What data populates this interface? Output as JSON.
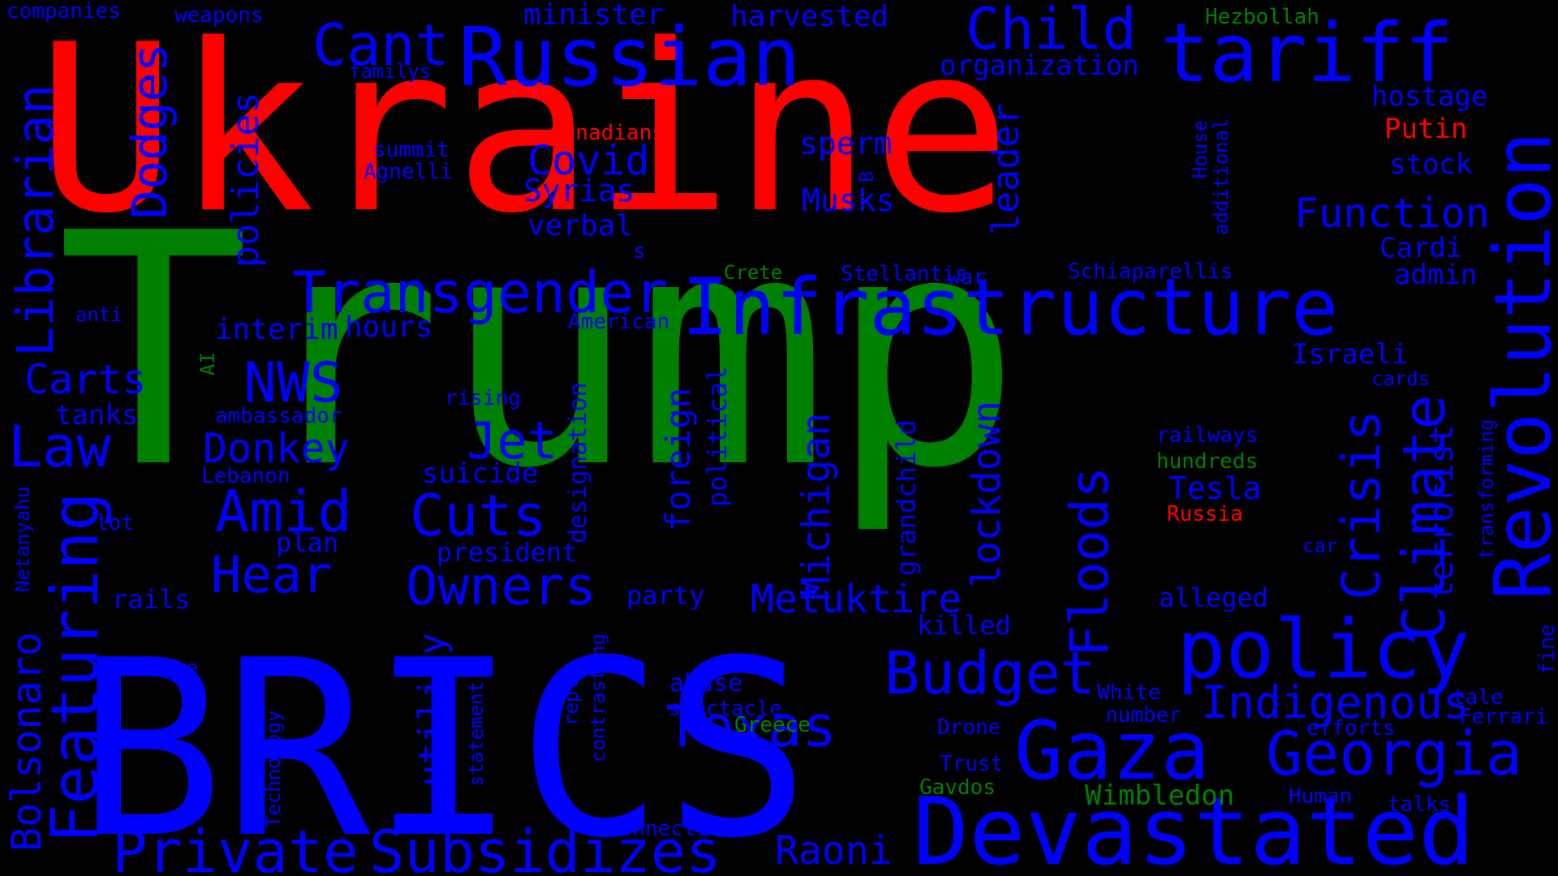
{
  "colors": {
    "background": "#000000",
    "red": "#ff0000",
    "green": "#008000",
    "blue": "#0000ff"
  },
  "words": [
    {
      "text": "Ukraine",
      "color": "red"
    },
    {
      "text": "Trump",
      "color": "green"
    },
    {
      "text": "BRICS",
      "color": "blue"
    },
    {
      "text": "Devastated",
      "color": "blue"
    },
    {
      "text": "Infrastructure",
      "color": "blue"
    },
    {
      "text": "Revolution",
      "color": "blue"
    },
    {
      "text": "Russian",
      "color": "blue"
    },
    {
      "text": "tariff",
      "color": "blue"
    },
    {
      "text": "policy",
      "color": "blue"
    },
    {
      "text": "Gaza",
      "color": "blue"
    },
    {
      "text": "Featuring",
      "color": "blue"
    },
    {
      "text": "Subsidizes",
      "color": "blue"
    },
    {
      "text": "Private",
      "color": "blue"
    },
    {
      "text": "Transgender",
      "color": "blue"
    },
    {
      "text": "Librarian",
      "color": "blue"
    },
    {
      "text": "Georgia",
      "color": "blue"
    },
    {
      "text": "Climate",
      "color": "blue"
    },
    {
      "text": "Crisis",
      "color": "blue"
    },
    {
      "text": "Floods",
      "color": "blue"
    },
    {
      "text": "Child",
      "color": "blue"
    },
    {
      "text": "Cant",
      "color": "blue"
    },
    {
      "text": "Dodges",
      "color": "blue"
    },
    {
      "text": "Law",
      "color": "blue"
    },
    {
      "text": "Amid",
      "color": "blue"
    },
    {
      "text": "Cuts",
      "color": "blue"
    },
    {
      "text": "Budget",
      "color": "blue"
    },
    {
      "text": "Texas",
      "color": "blue"
    },
    {
      "text": "Indigenous",
      "color": "blue"
    },
    {
      "text": "Owners",
      "color": "blue"
    },
    {
      "text": "Hear",
      "color": "blue"
    },
    {
      "text": "Jet",
      "color": "blue"
    },
    {
      "text": "NWS",
      "color": "blue"
    },
    {
      "text": "Function",
      "color": "blue"
    },
    {
      "text": "Bolsonaro",
      "color": "blue"
    },
    {
      "text": "Metuktire",
      "color": "blue"
    },
    {
      "text": "Raoni",
      "color": "blue"
    },
    {
      "text": "Michigan",
      "color": "blue"
    },
    {
      "text": "lockdown",
      "color": "blue"
    },
    {
      "text": "utility",
      "color": "blue"
    },
    {
      "text": "Donkey",
      "color": "blue"
    },
    {
      "text": "Carts",
      "color": "blue"
    },
    {
      "text": "Covid",
      "color": "blue"
    },
    {
      "text": "policies",
      "color": "blue"
    },
    {
      "text": "terrorist",
      "color": "blue"
    },
    {
      "text": "leader",
      "color": "blue"
    },
    {
      "text": "foreign",
      "color": "blue"
    },
    {
      "text": "Tesla",
      "color": "blue"
    },
    {
      "text": "Syrias",
      "color": "blue"
    },
    {
      "text": "verbal",
      "color": "blue"
    },
    {
      "text": "sperm",
      "color": "blue"
    },
    {
      "text": "Musks",
      "color": "blue"
    },
    {
      "text": "minister",
      "color": "blue"
    },
    {
      "text": "harvested",
      "color": "blue"
    },
    {
      "text": "organization",
      "color": "blue"
    },
    {
      "text": "hostage",
      "color": "blue"
    },
    {
      "text": "stock",
      "color": "blue"
    },
    {
      "text": "Cardi",
      "color": "blue"
    },
    {
      "text": "admin",
      "color": "blue"
    },
    {
      "text": "Israeli",
      "color": "blue"
    },
    {
      "text": "interim",
      "color": "blue"
    },
    {
      "text": "hours",
      "color": "blue"
    },
    {
      "text": "tanks",
      "color": "blue"
    },
    {
      "text": "grandchild",
      "color": "blue"
    },
    {
      "text": "designation",
      "color": "blue"
    },
    {
      "text": "political",
      "color": "blue"
    },
    {
      "text": "suicide",
      "color": "blue"
    },
    {
      "text": "president",
      "color": "blue"
    },
    {
      "text": "plan",
      "color": "blue"
    },
    {
      "text": "party",
      "color": "blue"
    },
    {
      "text": "rails",
      "color": "blue"
    },
    {
      "text": "alleged",
      "color": "blue"
    },
    {
      "text": "killed",
      "color": "blue"
    },
    {
      "text": "abuse",
      "color": "blue"
    },
    {
      "text": "spectacle",
      "color": "blue"
    },
    {
      "text": "Drone",
      "color": "blue"
    },
    {
      "text": "Trust",
      "color": "blue"
    },
    {
      "text": "White",
      "color": "blue"
    },
    {
      "text": "number",
      "color": "blue"
    },
    {
      "text": "efforts",
      "color": "blue"
    },
    {
      "text": "Human",
      "color": "blue"
    },
    {
      "text": "talks",
      "color": "blue"
    },
    {
      "text": "Ferrari",
      "color": "blue"
    },
    {
      "text": "tale",
      "color": "blue"
    },
    {
      "text": "fine",
      "color": "blue"
    },
    {
      "text": "transforming",
      "color": "blue"
    },
    {
      "text": "cards",
      "color": "blue"
    },
    {
      "text": "car",
      "color": "blue"
    },
    {
      "text": "railways",
      "color": "blue"
    },
    {
      "text": "Schiaparellis",
      "color": "blue"
    },
    {
      "text": "Stellantis",
      "color": "blue"
    },
    {
      "text": "war",
      "color": "blue"
    },
    {
      "text": "American",
      "color": "blue"
    },
    {
      "text": "rising",
      "color": "blue"
    },
    {
      "text": "ambassador",
      "color": "blue"
    },
    {
      "text": "Lebanon",
      "color": "blue"
    },
    {
      "text": "lot",
      "color": "blue"
    },
    {
      "text": "Netanyahu",
      "color": "blue"
    },
    {
      "text": "live",
      "color": "blue"
    },
    {
      "text": "reply",
      "color": "blue"
    },
    {
      "text": "contrasting",
      "color": "blue"
    },
    {
      "text": "statement",
      "color": "blue"
    },
    {
      "text": "Technology",
      "color": "blue"
    },
    {
      "text": "Connections",
      "color": "blue"
    },
    {
      "text": "companies",
      "color": "blue"
    },
    {
      "text": "weapons",
      "color": "blue"
    },
    {
      "text": "familys",
      "color": "blue"
    },
    {
      "text": "summit",
      "color": "blue"
    },
    {
      "text": "Agnelli",
      "color": "blue"
    },
    {
      "text": "anti",
      "color": "blue"
    },
    {
      "text": "House",
      "color": "blue"
    },
    {
      "text": "additional",
      "color": "blue"
    },
    {
      "text": "B",
      "color": "blue"
    },
    {
      "text": "s",
      "color": "blue"
    },
    {
      "text": "Putin",
      "color": "red"
    },
    {
      "text": "Canadians",
      "color": "red"
    },
    {
      "text": "Russia",
      "color": "red"
    },
    {
      "text": "Hezbollah",
      "color": "green"
    },
    {
      "text": "Wimbledon",
      "color": "green"
    },
    {
      "text": "hundreds",
      "color": "green"
    },
    {
      "text": "Crete",
      "color": "green"
    },
    {
      "text": "Greece",
      "color": "green"
    },
    {
      "text": "Gavdos",
      "color": "green"
    },
    {
      "text": "AI",
      "color": "green"
    }
  ]
}
